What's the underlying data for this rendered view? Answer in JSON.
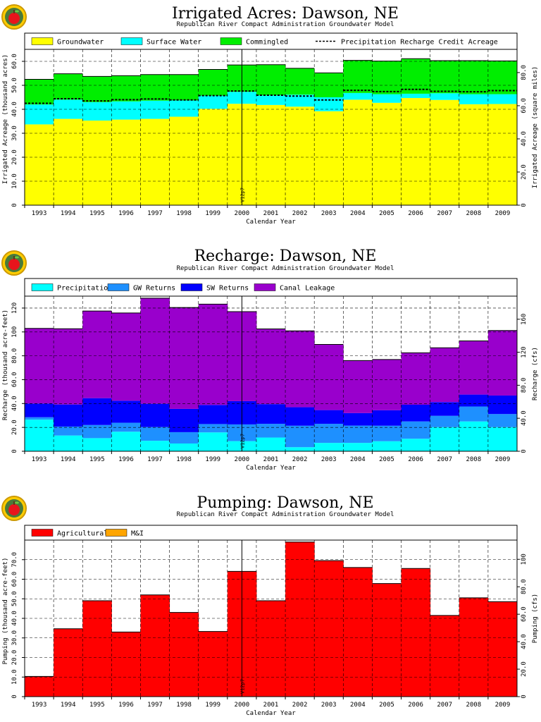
{
  "chart_data": [
    {
      "type": "area",
      "stacked": true,
      "title": "Irrigated Acres: Dawson, NE",
      "subtitle": "Republican River Compact Administration Groundwater Model",
      "xlabel": "Calendar Year",
      "ylabel": "Irrigated Acreage (thousand acres)",
      "y2label": "Irrigated Acreage (square miles)",
      "categories": [
        "1993",
        "1994",
        "1995",
        "1996",
        "1997",
        "1998",
        "1999",
        "2000",
        "2001",
        "2002",
        "2003",
        "2004",
        "2005",
        "2006",
        "2007",
        "2008",
        "2009"
      ],
      "ylim": [
        0,
        65
      ],
      "yticks": [
        "0",
        "10.0",
        "20.0",
        "30.0",
        "40.0",
        "50.0",
        "60.0"
      ],
      "y2ticks": [
        "0",
        "20.0",
        "40.0",
        "60.0",
        "80.0"
      ],
      "marker_year": "2000",
      "marker_label": "V12p7",
      "grid": true,
      "legend_position": "top",
      "series": [
        {
          "name": "Groundwater",
          "color": "#ffff00",
          "values": [
            33.7,
            36.0,
            35.3,
            35.7,
            36.0,
            36.9,
            40.2,
            42.3,
            41.8,
            41.1,
            39.2,
            44.0,
            42.7,
            44.7,
            43.9,
            42.1,
            42.2
          ]
        },
        {
          "name": "Surface Water",
          "color": "#00ffff",
          "values": [
            8.3,
            8.0,
            7.7,
            7.6,
            7.6,
            6.8,
            5.5,
            5.0,
            4.0,
            5.0,
            5.8,
            2.8,
            3.6,
            1.8,
            2.8,
            4.2,
            4.1
          ]
        },
        {
          "name": "Commingled",
          "color": "#00ee00",
          "values": [
            10.5,
            10.8,
            10.7,
            10.7,
            10.9,
            10.8,
            10.9,
            11.2,
            12.8,
            11.0,
            10.2,
            13.6,
            13.8,
            14.6,
            13.6,
            14.0,
            13.9
          ]
        }
      ],
      "line_series": {
        "name": "Precipitation Recharge Credit Acreage",
        "values": [
          42.5,
          44.4,
          43.5,
          44.0,
          44.3,
          43.9,
          45.7,
          47.6,
          45.9,
          45.5,
          43.9,
          47.9,
          47.4,
          48.3,
          47.5,
          47.3,
          47.8
        ]
      }
    },
    {
      "type": "area",
      "stacked": true,
      "title": "Recharge: Dawson, NE",
      "subtitle": "Republican River Compact Administration Groundwater Model",
      "xlabel": "Calendar Year",
      "ylabel": "Recharge (thousand acre-feet)",
      "y2label": "Recharge (cfs)",
      "categories": [
        "1993",
        "1994",
        "1995",
        "1996",
        "1997",
        "1998",
        "1999",
        "2000",
        "2001",
        "2002",
        "2003",
        "2004",
        "2005",
        "2006",
        "2007",
        "2008",
        "2009"
      ],
      "ylim": [
        0,
        130
      ],
      "yticks": [
        "0",
        "20.0",
        "40.0",
        "60.0",
        "80.0",
        "100",
        "120"
      ],
      "y2ticks": [
        "0",
        "40.0",
        "80.0",
        "120",
        "160"
      ],
      "marker_year": "2000",
      "marker_label": "V12p7",
      "grid": true,
      "legend_position": "top",
      "series": [
        {
          "name": "Precipitation",
          "color": "#00ffff",
          "values": [
            26.5,
            13.2,
            11.0,
            16.4,
            8.8,
            6.5,
            15.8,
            8.5,
            11.5,
            3.4,
            7.0,
            7.0,
            8.4,
            10.5,
            20.2,
            25.0,
            20.2
          ]
        },
        {
          "name": "GW Returns",
          "color": "#1e90ff",
          "values": [
            2.0,
            7.5,
            11.0,
            7.5,
            11.5,
            9.5,
            7.0,
            14.0,
            11.5,
            18.0,
            16.0,
            14.5,
            13.0,
            14.5,
            9.5,
            12.5,
            11.0
          ]
        },
        {
          "name": "SW Returns",
          "color": "#0000ff",
          "values": [
            11.5,
            18.5,
            22.5,
            18.5,
            19.5,
            19.5,
            16.0,
            19.5,
            16.5,
            15.5,
            11.5,
            10.5,
            13.0,
            14.0,
            11.5,
            10.0,
            15.5
          ]
        },
        {
          "name": "Canal Leakage",
          "color": "#9900cc",
          "values": [
            63.0,
            63.5,
            73.0,
            73.5,
            88.5,
            85.0,
            84.5,
            75.0,
            63.0,
            64.0,
            55.0,
            44.0,
            42.5,
            43.5,
            45.5,
            45.0,
            54.5
          ]
        }
      ]
    },
    {
      "type": "area",
      "stacked": true,
      "title": "Pumping: Dawson, NE",
      "subtitle": "Republican River Compact Administration Groundwater Model",
      "xlabel": "Calendar Year",
      "ylabel": "Pumping (thousand acre-feet)",
      "y2label": "Pumping (cfs)",
      "categories": [
        "1993",
        "1994",
        "1995",
        "1996",
        "1997",
        "1998",
        "1999",
        "2000",
        "2001",
        "2002",
        "2003",
        "2004",
        "2005",
        "2006",
        "2007",
        "2008",
        "2009"
      ],
      "ylim": [
        0,
        80
      ],
      "yticks": [
        "0",
        "10.0",
        "20.0",
        "30.0",
        "40.0",
        "50.0",
        "60.0",
        "70.0"
      ],
      "y2ticks": [
        "0",
        "20.0",
        "40.0",
        "60.0",
        "80.0",
        "100"
      ],
      "marker_year": "2000",
      "marker_label": "V12p7",
      "grid": true,
      "legend_position": "top",
      "series": [
        {
          "name": "Agricultural",
          "color": "#ff0000",
          "values": [
            10.3,
            34.7,
            49.0,
            33.0,
            52.0,
            43.0,
            33.3,
            64.0,
            49.0,
            79.0,
            69.5,
            66.0,
            57.8,
            65.5,
            41.5,
            50.5,
            48.5
          ]
        },
        {
          "name": "M&I",
          "color": "#ffa500",
          "values": [
            0,
            0,
            0,
            0,
            0,
            0,
            0,
            0,
            0,
            0,
            0,
            0,
            0,
            0,
            0,
            0,
            0
          ]
        }
      ]
    }
  ]
}
